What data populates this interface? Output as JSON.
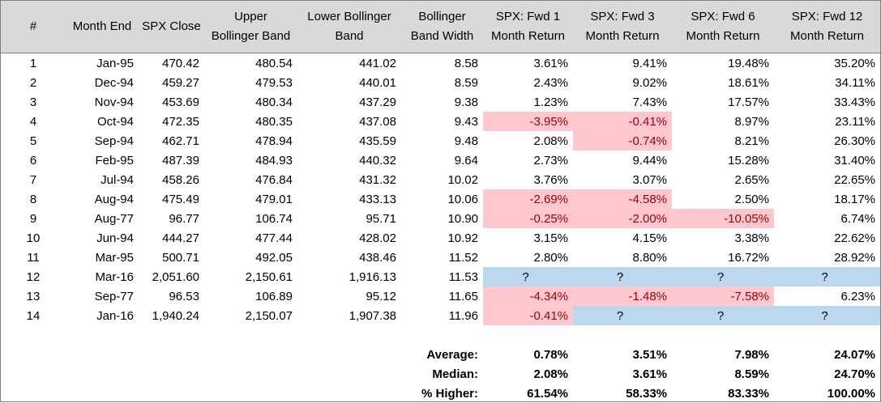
{
  "headers": [
    [
      "#"
    ],
    [
      "Month End"
    ],
    [
      "SPX Close"
    ],
    [
      "Upper",
      "Bollinger Band"
    ],
    [
      "Lower Bollinger",
      "Band"
    ],
    [
      "Bollinger",
      "Band Width"
    ],
    [
      "SPX: Fwd 1",
      "Month Return"
    ],
    [
      "SPX: Fwd 3",
      "Month Return"
    ],
    [
      "SPX: Fwd 6",
      "Month Return"
    ],
    [
      "SPX: Fwd 12",
      "Month Return"
    ]
  ],
  "rows": [
    {
      "num": "1",
      "month": "Jan-95",
      "close": "470.42",
      "upper": "480.54",
      "lower": "441.02",
      "width": "8.58",
      "f1": "3.61%",
      "f3": "9.41%",
      "f6": "19.48%",
      "f12": "35.20%",
      "hl": {}
    },
    {
      "num": "2",
      "month": "Dec-94",
      "close": "459.27",
      "upper": "479.53",
      "lower": "440.01",
      "width": "8.59",
      "f1": "2.43%",
      "f3": "9.02%",
      "f6": "18.61%",
      "f12": "34.11%",
      "hl": {}
    },
    {
      "num": "3",
      "month": "Nov-94",
      "close": "453.69",
      "upper": "480.34",
      "lower": "437.29",
      "width": "9.38",
      "f1": "1.23%",
      "f3": "7.43%",
      "f6": "17.57%",
      "f12": "33.43%",
      "hl": {}
    },
    {
      "num": "4",
      "month": "Oct-94",
      "close": "472.35",
      "upper": "480.35",
      "lower": "437.08",
      "width": "9.43",
      "f1": "-3.95%",
      "f3": "-0.41%",
      "f6": "8.97%",
      "f12": "23.11%",
      "hl": {
        "f1": "neg",
        "f3": "neg"
      }
    },
    {
      "num": "5",
      "month": "Sep-94",
      "close": "462.71",
      "upper": "478.94",
      "lower": "435.59",
      "width": "9.48",
      "f1": "2.08%",
      "f3": "-0.74%",
      "f6": "8.21%",
      "f12": "26.30%",
      "hl": {
        "f3": "neg"
      }
    },
    {
      "num": "6",
      "month": "Feb-95",
      "close": "487.39",
      "upper": "484.93",
      "lower": "440.32",
      "width": "9.64",
      "f1": "2.73%",
      "f3": "9.44%",
      "f6": "15.28%",
      "f12": "31.40%",
      "hl": {}
    },
    {
      "num": "7",
      "month": "Jul-94",
      "close": "458.26",
      "upper": "476.84",
      "lower": "431.32",
      "width": "10.02",
      "f1": "3.76%",
      "f3": "3.07%",
      "f6": "2.65%",
      "f12": "22.65%",
      "hl": {}
    },
    {
      "num": "8",
      "month": "Aug-94",
      "close": "475.49",
      "upper": "479.01",
      "lower": "433.13",
      "width": "10.06",
      "f1": "-2.69%",
      "f3": "-4.58%",
      "f6": "2.50%",
      "f12": "18.17%",
      "hl": {
        "f1": "neg",
        "f3": "neg"
      }
    },
    {
      "num": "9",
      "month": "Aug-77",
      "close": "96.77",
      "upper": "106.74",
      "lower": "95.71",
      "width": "10.90",
      "f1": "-0.25%",
      "f3": "-2.00%",
      "f6": "-10.05%",
      "f12": "6.74%",
      "hl": {
        "f1": "neg",
        "f3": "neg",
        "f6": "neg"
      }
    },
    {
      "num": "10",
      "month": "Jun-94",
      "close": "444.27",
      "upper": "477.44",
      "lower": "428.02",
      "width": "10.92",
      "f1": "3.15%",
      "f3": "4.15%",
      "f6": "3.38%",
      "f12": "22.62%",
      "hl": {}
    },
    {
      "num": "11",
      "month": "Mar-95",
      "close": "500.71",
      "upper": "492.05",
      "lower": "438.46",
      "width": "11.52",
      "f1": "2.80%",
      "f3": "8.80%",
      "f6": "16.72%",
      "f12": "28.92%",
      "hl": {}
    },
    {
      "num": "12",
      "month": "Mar-16",
      "close": "2,051.60",
      "upper": "2,150.61",
      "lower": "1,916.13",
      "width": "11.53",
      "f1": "?",
      "f3": "?",
      "f6": "?",
      "f12": "?",
      "hl": {
        "f1": "unk",
        "f3": "unk",
        "f6": "unk",
        "f12": "unk"
      }
    },
    {
      "num": "13",
      "month": "Sep-77",
      "close": "96.53",
      "upper": "106.89",
      "lower": "95.12",
      "width": "11.65",
      "f1": "-4.34%",
      "f3": "-1.48%",
      "f6": "-7.58%",
      "f12": "6.23%",
      "hl": {
        "f1": "neg",
        "f3": "neg",
        "f6": "neg"
      }
    },
    {
      "num": "14",
      "month": "Jan-16",
      "close": "1,940.24",
      "upper": "2,150.07",
      "lower": "1,907.38",
      "width": "11.96",
      "f1": "-0.41%",
      "f3": "?",
      "f6": "?",
      "f12": "?",
      "hl": {
        "f1": "neg",
        "f3": "unk",
        "f6": "unk",
        "f12": "unk"
      }
    }
  ],
  "summary": [
    {
      "label": "Average:",
      "f1": "0.78%",
      "f3": "3.51%",
      "f6": "7.98%",
      "f12": "24.07%"
    },
    {
      "label": "Median:",
      "f1": "2.08%",
      "f3": "3.61%",
      "f6": "8.59%",
      "f12": "24.70%"
    },
    {
      "label": "% Higher:",
      "f1": "61.54%",
      "f3": "58.33%",
      "f6": "83.33%",
      "f12": "100.00%"
    }
  ],
  "colors": {
    "header_bg": "#d9d9d9",
    "negative_fill": "#ffc7ce",
    "negative_text": "#9c0006",
    "unknown_fill": "#bdd7ee"
  }
}
